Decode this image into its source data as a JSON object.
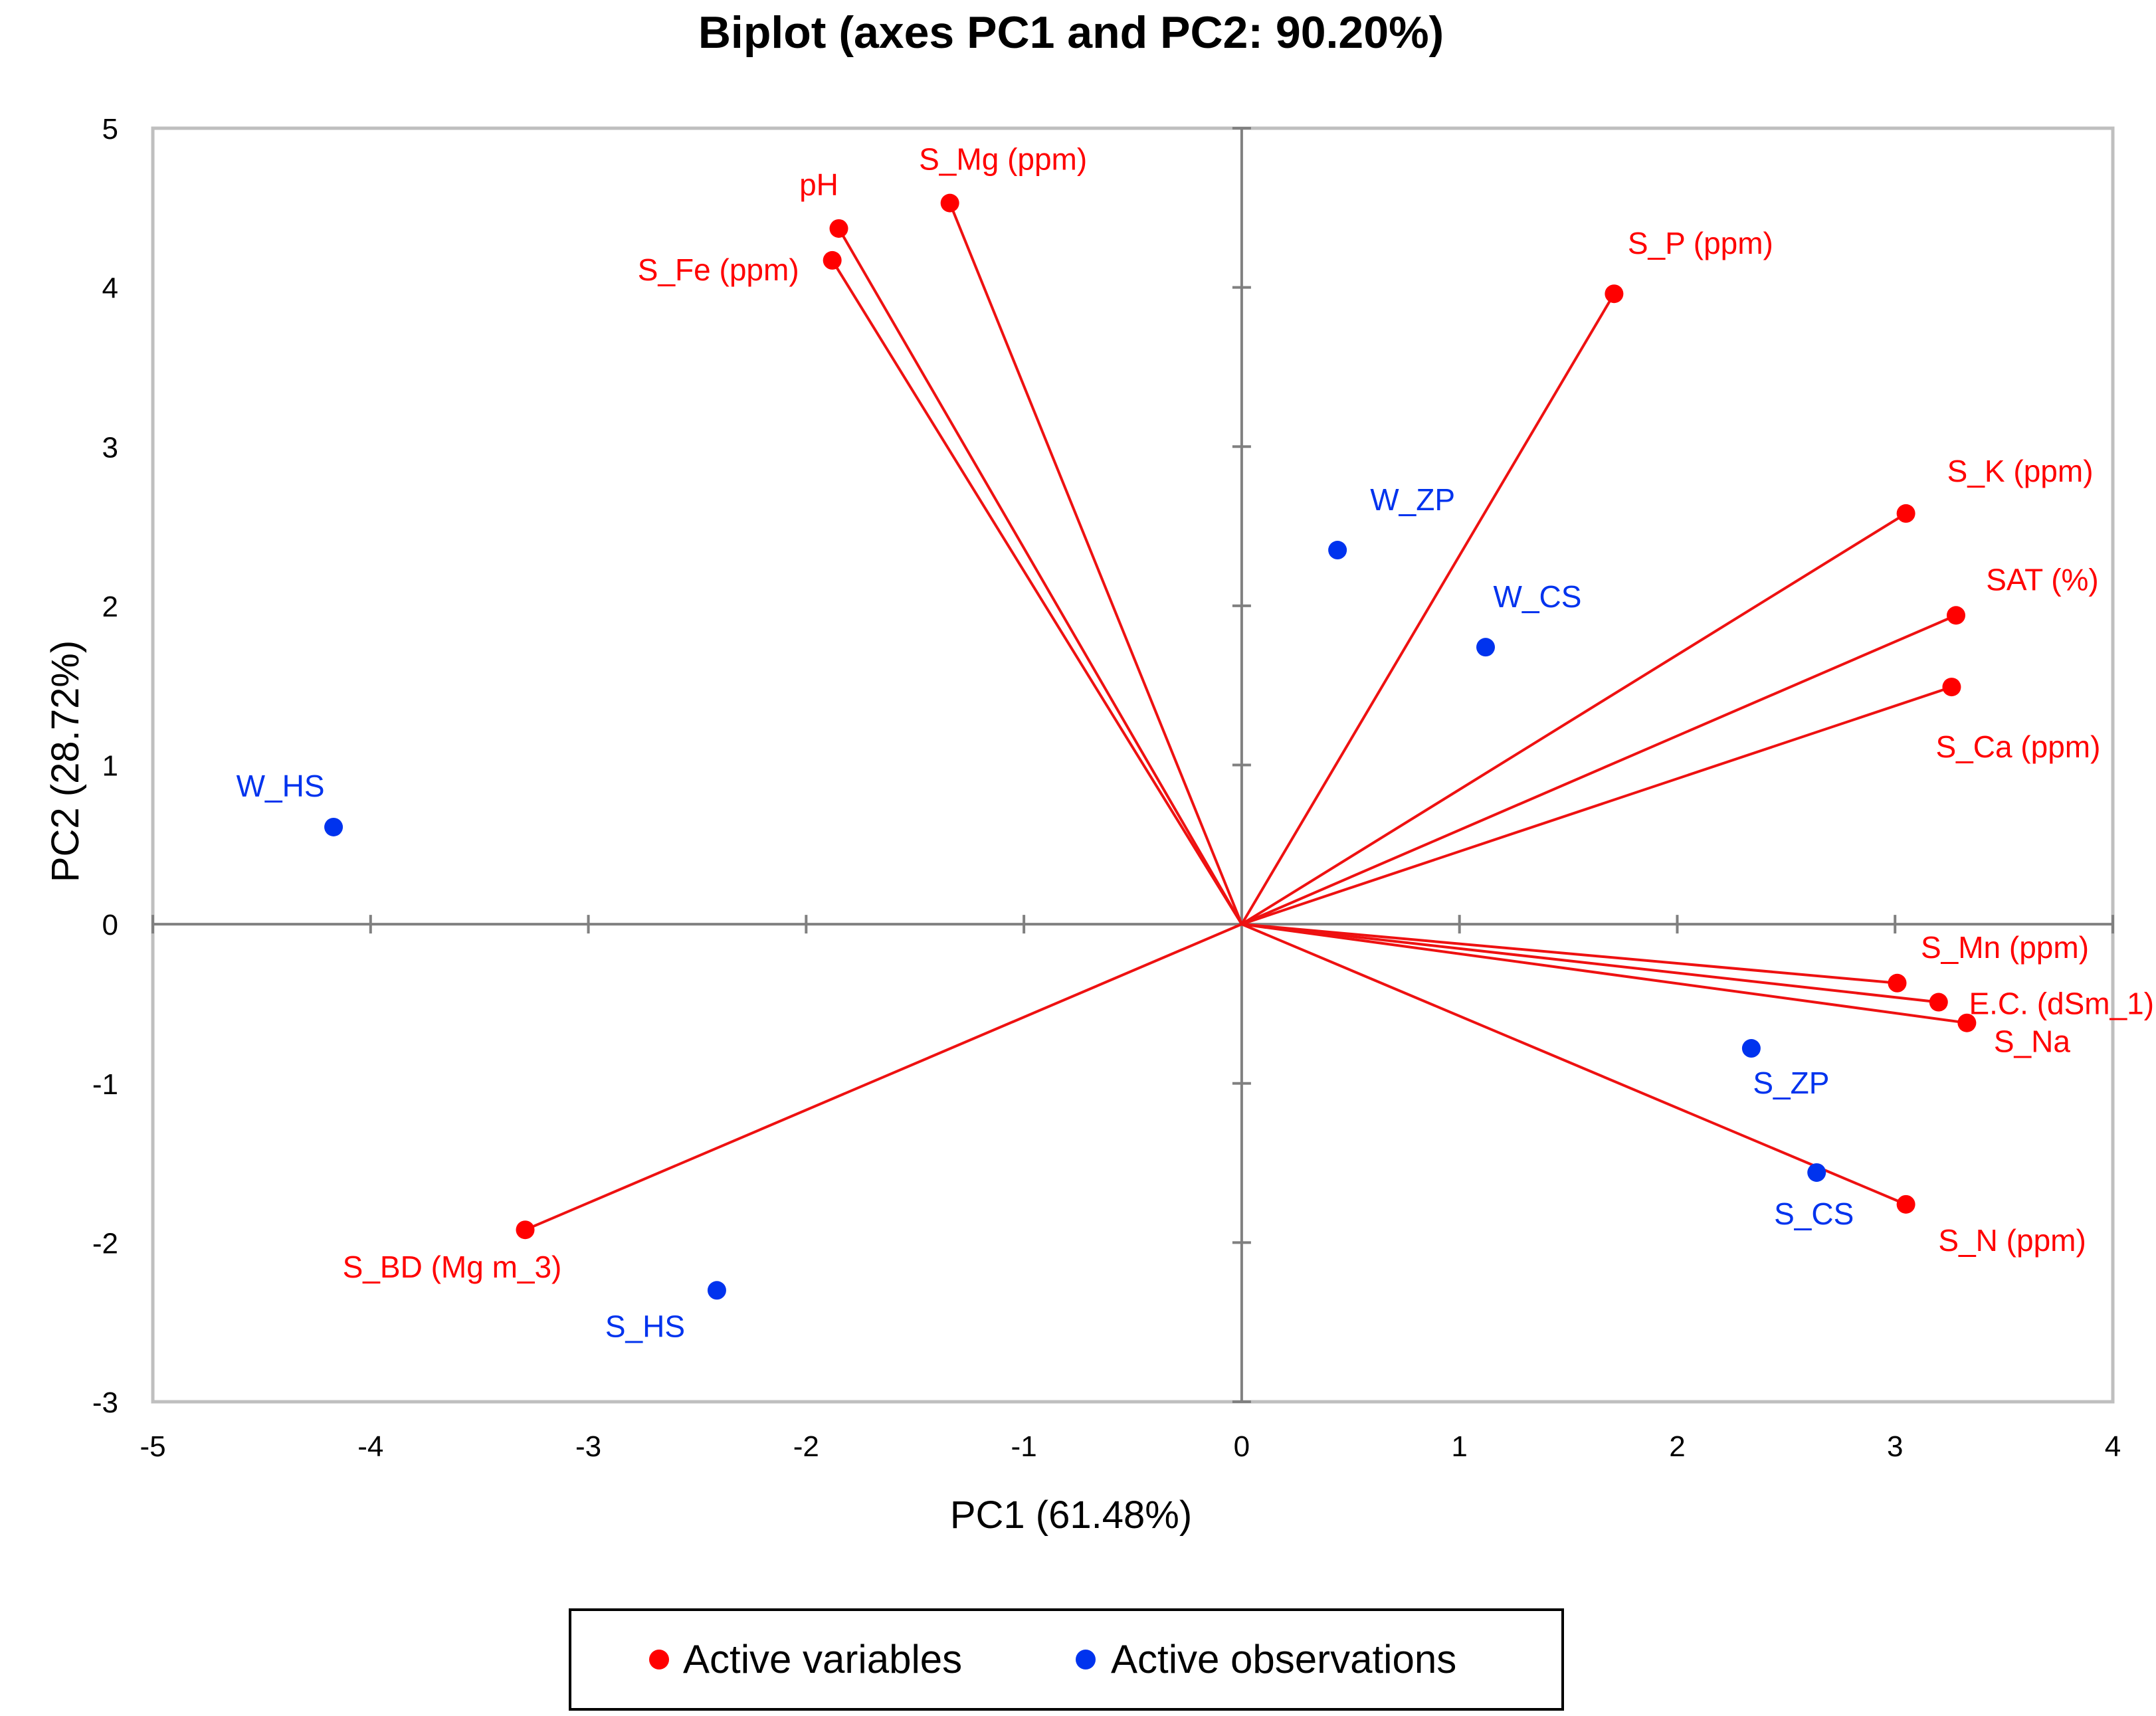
{
  "chart_data": {
    "type": "scatter",
    "title": "Biplot (axes PC1 and PC2: 90.20%)",
    "xlabel": "PC1 (61.48%)",
    "ylabel": "PC2 (28.72%)",
    "xlim": [
      -5,
      4
    ],
    "ylim": [
      -3,
      5
    ],
    "xticks": [
      "-5",
      "-4",
      "-3",
      "-2",
      "-1",
      "0",
      "1",
      "2",
      "3",
      "4"
    ],
    "yticks": [
      "-3",
      "-2",
      "-1",
      "0",
      "1",
      "2",
      "3",
      "4",
      "5"
    ],
    "grid": false,
    "legend_position": "bottom",
    "colors": {
      "variables": "#ff0000",
      "observations": "#0033ee",
      "vectors": "#ee1111",
      "frame": "#bfbfbf",
      "zero_axis": "#808080"
    },
    "series": [
      {
        "name": "Active variables",
        "kind": "vectors",
        "points": [
          {
            "label": "pH",
            "x": -1.85,
            "y": 4.37
          },
          {
            "label": "S_Mg (ppm)",
            "x": -1.34,
            "y": 4.53
          },
          {
            "label": "S_Fe (ppm)",
            "x": -1.88,
            "y": 4.17
          },
          {
            "label": "S_P (ppm)",
            "x": 1.71,
            "y": 3.96
          },
          {
            "label": "S_K (ppm)",
            "x": 3.05,
            "y": 2.58
          },
          {
            "label": "SAT (%)",
            "x": 3.28,
            "y": 1.94
          },
          {
            "label": "S_Ca (ppm)",
            "x": 3.26,
            "y": 1.49
          },
          {
            "label": "S_Mn (ppm)",
            "x": 3.01,
            "y": -0.37
          },
          {
            "label": "E.C. (dSm_1)",
            "x": 3.2,
            "y": -0.49
          },
          {
            "label": "S_Na",
            "x": 3.33,
            "y": -0.62
          },
          {
            "label": "S_N (ppm)",
            "x": 3.05,
            "y": -1.76
          },
          {
            "label": "S_BD (Mg m_3)",
            "x": -3.29,
            "y": -1.92
          }
        ]
      },
      {
        "name": "Active observations",
        "kind": "points",
        "points": [
          {
            "label": "W_ZP",
            "x": 0.44,
            "y": 2.35
          },
          {
            "label": "W_CS",
            "x": 1.12,
            "y": 1.74
          },
          {
            "label": "W_HS",
            "x": -4.17,
            "y": 0.61
          },
          {
            "label": "S_ZP",
            "x": 2.34,
            "y": -0.78
          },
          {
            "label": "S_CS",
            "x": 2.64,
            "y": -1.56
          },
          {
            "label": "S_HS",
            "x": -2.41,
            "y": -2.3
          }
        ]
      }
    ]
  }
}
